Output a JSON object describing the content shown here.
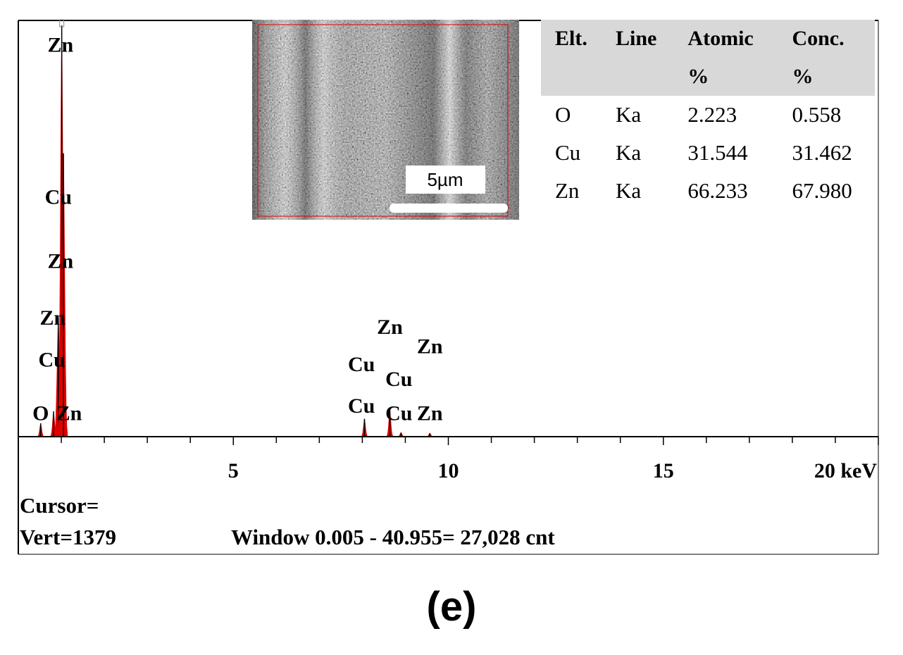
{
  "chart_data": {
    "type": "line",
    "xlabel": "",
    "ylabel": "",
    "x_unit": "keV",
    "xlim": [
      0,
      20
    ],
    "x_ticks": [
      5,
      10,
      15
    ],
    "x_last_tick_label": "20 keV",
    "ymax_counts": 1379,
    "peaks": [
      {
        "x": 0.52,
        "y": 45
      },
      {
        "x": 0.82,
        "y": 85
      },
      {
        "x": 0.93,
        "y": 400
      },
      {
        "x": 1.01,
        "y": 1379
      },
      {
        "x": 1.05,
        "y": 950
      },
      {
        "x": 8.05,
        "y": 60
      },
      {
        "x": 8.64,
        "y": 90
      },
      {
        "x": 8.9,
        "y": 14
      },
      {
        "x": 9.57,
        "y": 12
      }
    ],
    "peak_labels": [
      {
        "text": "Zn",
        "x": 0.98,
        "y": 1290
      },
      {
        "text": "Cu",
        "x": 0.93,
        "y": 780
      },
      {
        "text": "Zn",
        "x": 0.98,
        "y": 565
      },
      {
        "text": "Zn",
        "x": 0.8,
        "y": 375
      },
      {
        "text": "Cu",
        "x": 0.78,
        "y": 235
      },
      {
        "text": "O",
        "x": 0.52,
        "y": 55
      },
      {
        "text": "Zn",
        "x": 1.18,
        "y": 55
      },
      {
        "text": "Zn",
        "x": 8.64,
        "y": 345
      },
      {
        "text": "Zn",
        "x": 9.57,
        "y": 280
      },
      {
        "text": "Cu",
        "x": 7.98,
        "y": 220
      },
      {
        "text": "Cu",
        "x": 8.85,
        "y": 170
      },
      {
        "text": "Cu",
        "x": 7.98,
        "y": 80
      },
      {
        "text": "Cu",
        "x": 8.85,
        "y": 55
      },
      {
        "text": "Zn",
        "x": 9.57,
        "y": 55
      }
    ],
    "colors": {
      "fill": "#e00000",
      "outline": "#000000",
      "axis": "#000000"
    }
  },
  "inset": {
    "scale_bar_label": "5µm"
  },
  "table": {
    "headers": [
      {
        "line1": "Elt.",
        "line2": ""
      },
      {
        "line1": "Line",
        "line2": ""
      },
      {
        "line1": "Atomic",
        "line2": "%"
      },
      {
        "line1": "Conc.",
        "line2": "%"
      }
    ],
    "rows": [
      [
        "O",
        "Ka",
        "2.223",
        "0.558"
      ],
      [
        "Cu",
        "Ka",
        "31.544",
        "31.462"
      ],
      [
        "Zn",
        "Ka",
        "66.233",
        "67.980"
      ]
    ]
  },
  "footer": {
    "cursor": "Cursor=",
    "vert": "Vert=1379",
    "window": "Window 0.005 - 40.955=   27,028 cnt"
  },
  "panel_label": "(e)"
}
